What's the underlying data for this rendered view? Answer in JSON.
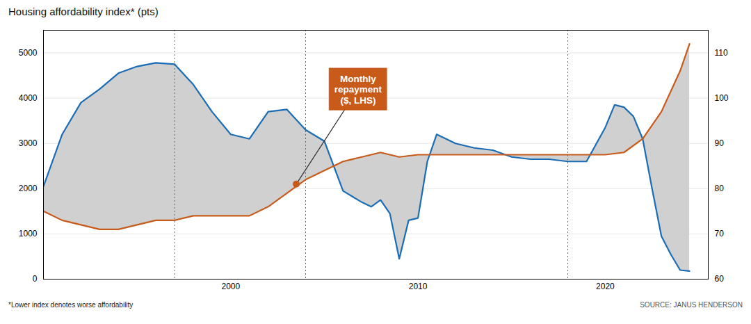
{
  "chart_data": {
    "type": "line",
    "title": "Housing affordability index* (pts)",
    "footnote": "*Lower index denotes worse affordability",
    "source": "SOURCE: JANUS HENDERSON",
    "xlim": [
      1990,
      2025.5
    ],
    "xticks": [
      2000,
      2010,
      2020
    ],
    "ylim": [
      0,
      5500
    ],
    "yticks": [
      0,
      1000,
      2000,
      3000,
      4000,
      5000
    ],
    "y2lim": [
      60,
      115
    ],
    "y2ticks": [
      60,
      70,
      80,
      90,
      100,
      110
    ],
    "grid": true,
    "series": [
      {
        "color": "#1A6DB5",
        "x": [
          1990,
          1991,
          1992,
          1993,
          1994,
          1995,
          1996,
          1997,
          1998,
          1999,
          2000,
          2001,
          2002,
          2003,
          2004,
          2005,
          2006,
          2007,
          2007.5,
          2008,
          2008.5,
          2009,
          2009.5,
          2010,
          2010.5,
          2011,
          2012,
          2013,
          2014,
          2015,
          2016,
          2017,
          2018,
          2019,
          2020,
          2020.5,
          2021,
          2021.5,
          2022,
          2022.5,
          2023,
          2023.5,
          2024,
          2024.5
        ],
        "values": [
          2050,
          3200,
          3900,
          4200,
          4550,
          4700,
          4780,
          4750,
          4300,
          3700,
          3200,
          3100,
          3700,
          3750,
          3300,
          3050,
          1950,
          1700,
          1600,
          1750,
          1450,
          450,
          1300,
          1350,
          2600,
          3200,
          3000,
          2900,
          2850,
          2700,
          2650,
          2650,
          2600,
          2600,
          3350,
          3850,
          3800,
          3600,
          3100,
          2000,
          950,
          550,
          200,
          180
        ]
      },
      {
        "color": "#C85A1A",
        "axis": "y2",
        "x": [
          1990,
          1991,
          1992,
          1993,
          1994,
          1995,
          1996,
          1997,
          1998,
          1999,
          2000,
          2001,
          2002,
          2003,
          2004,
          2005,
          2006,
          2007,
          2008,
          2009,
          2010,
          2011,
          2012,
          2013,
          2014,
          2015,
          2016,
          2017,
          2018,
          2019,
          2020,
          2021,
          2022,
          2023,
          2024,
          2024.5
        ],
        "values": [
          75,
          73,
          72,
          71,
          71,
          72,
          73,
          73,
          74,
          74,
          74,
          74,
          76,
          79,
          82,
          84,
          86,
          87,
          88,
          87,
          87.5,
          87.5,
          87.5,
          87.5,
          87.5,
          87.5,
          87.5,
          87.5,
          87.5,
          87.5,
          87.5,
          88,
          91,
          97,
          106,
          112
        ]
      }
    ],
    "fill_between": {
      "color": "#d0d0d0"
    },
    "vlines": [
      1997,
      2004,
      2018
    ],
    "annotations": [
      {
        "text": "Monthly\nrepayment\n($, LHS)",
        "x": 2003.5,
        "y": 2100,
        "text_x": 2006.8,
        "text_y": 4200,
        "color": "#C85A1A"
      }
    ]
  }
}
